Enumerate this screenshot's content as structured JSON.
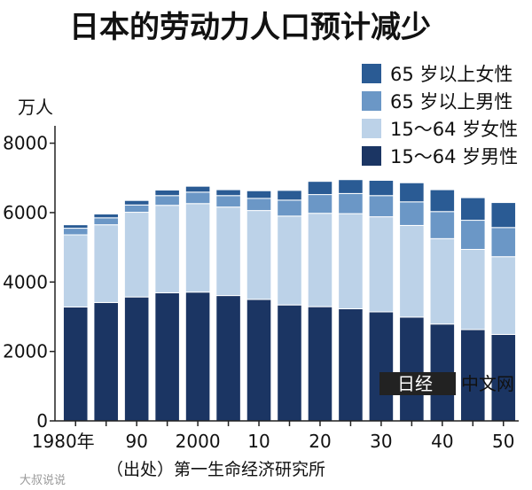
{
  "chart_data": {
    "type": "bar",
    "stacked": true,
    "title": "日本的劳动力人口预计减少",
    "ylabel": "万人",
    "ylim": [
      0,
      8500
    ],
    "yticks": [
      0,
      2000,
      4000,
      6000,
      8000
    ],
    "x": [
      1980,
      1985,
      1990,
      1995,
      2000,
      2005,
      2010,
      2015,
      2020,
      2025,
      2030,
      2035,
      2040,
      2045,
      2050
    ],
    "xtick_labels": [
      {
        "x": 1980,
        "label": "1980年"
      },
      {
        "x": 1990,
        "label": "90"
      },
      {
        "x": 2000,
        "label": "2000"
      },
      {
        "x": 2010,
        "label": "10"
      },
      {
        "x": 2020,
        "label": "20"
      },
      {
        "x": 2030,
        "label": "30"
      },
      {
        "x": 2040,
        "label": "40"
      },
      {
        "x": 2050,
        "label": "50"
      }
    ],
    "series": [
      {
        "name": "15～64 岁男性",
        "color": "#1b3563",
        "values": [
          3280,
          3410,
          3570,
          3690,
          3710,
          3610,
          3500,
          3340,
          3290,
          3230,
          3140,
          2990,
          2790,
          2630,
          2490
        ]
      },
      {
        "name": "15～64 岁女性",
        "color": "#bcd2e8",
        "values": [
          2080,
          2240,
          2440,
          2520,
          2550,
          2550,
          2560,
          2560,
          2690,
          2740,
          2740,
          2640,
          2460,
          2310,
          2240
        ]
      },
      {
        "name": "65 岁以上男性",
        "color": "#6b97c6",
        "values": [
          190,
          200,
          210,
          280,
          330,
          330,
          350,
          460,
          540,
          580,
          610,
          680,
          780,
          840,
          840
        ]
      },
      {
        "name": "65 岁以上女性",
        "color": "#2a5b94",
        "values": [
          100,
          110,
          130,
          160,
          170,
          170,
          220,
          280,
          380,
          400,
          440,
          550,
          630,
          650,
          720
        ]
      }
    ],
    "legend": [
      "65 岁以上女性",
      "65 岁以上男性",
      "15～64 岁女性",
      "15～64 岁男性"
    ],
    "legend_position": "top-right",
    "source": "（出处）第一生命经济研究所"
  },
  "logo": {
    "mark": "日经",
    "text": "中文网"
  },
  "watermark": "大叔说说"
}
